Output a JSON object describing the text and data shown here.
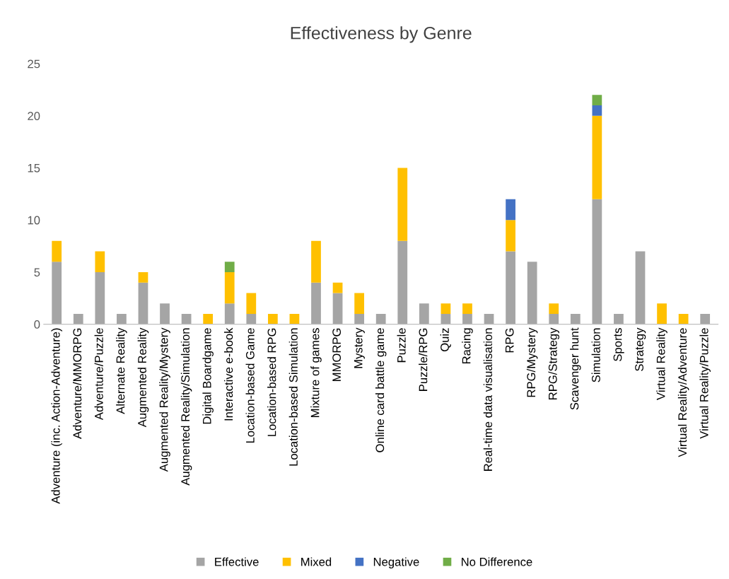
{
  "chart_data": {
    "type": "bar",
    "title": "Effectiveness by Genre",
    "stacked": true,
    "categories": [
      "Adventure (inc. Action-Adventure)",
      "Adventure/MMORPG",
      "Adventure/Puzzle",
      "Alternate Reality",
      "Augmented Reality",
      "Augmented Reality/Mystery",
      "Augmented Reality/Simulation",
      "Digital Boardgame",
      "Interactive e-book",
      "Location-based Game",
      "Location-based RPG",
      "Location-based Simulation",
      "Mixture of games",
      "MMORPG",
      "Mystery",
      "Online card battle game",
      "Puzzle",
      "Puzzle/RPG",
      "Quiz",
      "Racing",
      "Real-time data visualisation",
      "RPG",
      "RPG/Mystery",
      "RPG/Strategy",
      "Scavenger hunt",
      "Simulation",
      "Sports",
      "Strategy",
      "Virtual Reality",
      "Virtual Reality/Adventure",
      "Virtual Reality/Puzzle"
    ],
    "series": [
      {
        "name": "Effective",
        "color": "#a5a5a5",
        "values": [
          6,
          1,
          5,
          1,
          4,
          2,
          1,
          0,
          2,
          1,
          0,
          0,
          4,
          3,
          1,
          1,
          8,
          2,
          1,
          1,
          1,
          7,
          6,
          1,
          1,
          12,
          1,
          7,
          0,
          0,
          1
        ]
      },
      {
        "name": "Mixed",
        "color": "#ffc000",
        "values": [
          2,
          0,
          2,
          0,
          1,
          0,
          0,
          1,
          3,
          2,
          1,
          1,
          4,
          1,
          2,
          0,
          7,
          0,
          1,
          1,
          0,
          3,
          0,
          1,
          0,
          8,
          0,
          0,
          2,
          1,
          0
        ]
      },
      {
        "name": "Negative",
        "color": "#4472c4",
        "values": [
          0,
          0,
          0,
          0,
          0,
          0,
          0,
          0,
          0,
          0,
          0,
          0,
          0,
          0,
          0,
          0,
          0,
          0,
          0,
          0,
          0,
          2,
          0,
          0,
          0,
          1,
          0,
          0,
          0,
          0,
          0
        ]
      },
      {
        "name": "No Difference",
        "color": "#70ad47",
        "values": [
          0,
          0,
          0,
          0,
          0,
          0,
          0,
          0,
          1,
          0,
          0,
          0,
          0,
          0,
          0,
          0,
          0,
          0,
          0,
          0,
          0,
          0,
          0,
          0,
          0,
          1,
          0,
          0,
          0,
          0,
          0
        ]
      }
    ],
    "ylim": [
      0,
      25
    ],
    "yticks": [
      0,
      5,
      10,
      15,
      20,
      25
    ],
    "grid": false,
    "legend": "bottom"
  }
}
